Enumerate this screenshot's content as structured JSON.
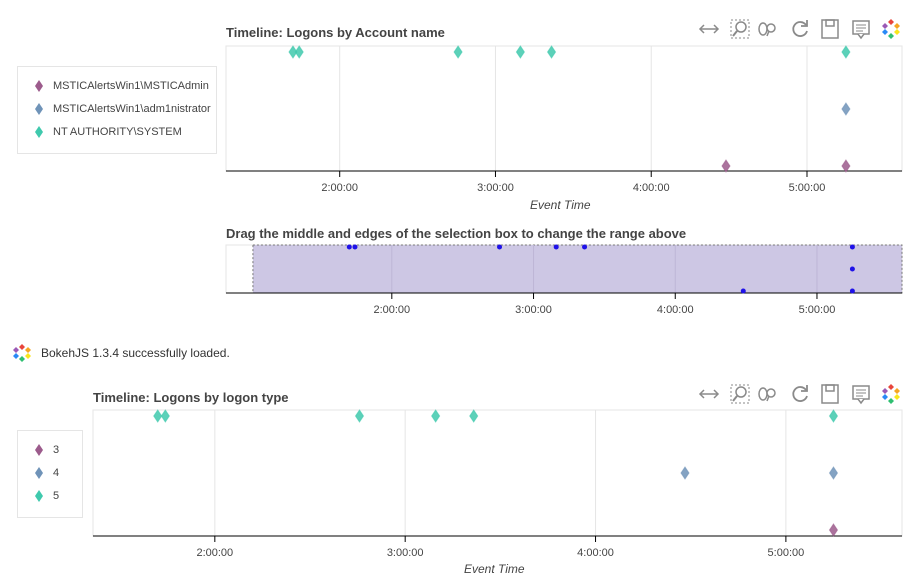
{
  "colors": {
    "series_3": "#9c5b8c",
    "series_4": "#6f93b8",
    "series_5": "#3fc9ad",
    "range_dot": "#1f12e8",
    "selection_fill": "#cdc7e4",
    "toolbar_active": "#26aae1"
  },
  "toolbar": {
    "icons": [
      "pan-icon",
      "box-zoom-icon",
      "wheel-zoom-icon",
      "reset-icon",
      "save-icon",
      "hover-icon",
      "bokeh-logo-icon"
    ]
  },
  "loaded_message": "BokehJS 1.3.4 successfully loaded.",
  "chart_data": [
    {
      "type": "scatter",
      "title": "Timeline: Logons by Account name",
      "xlabel": "Event Time",
      "ylabel": "",
      "x_ticks": [
        "2:00:00",
        "3:00:00",
        "4:00:00",
        "5:00:00"
      ],
      "xlim": [
        1.27,
        5.61
      ],
      "grid": true,
      "legend_placement": "left-outside",
      "marker": "diamond",
      "series": [
        {
          "name": "MSTICAlertsWin1\\MSTICAdmin",
          "color_key": "series_3",
          "row": 2,
          "x": [
            4.48,
            5.25
          ]
        },
        {
          "name": "MSTICAlertsWin1\\adm1nistrator",
          "color_key": "series_4",
          "row": 1,
          "x": [
            5.25
          ]
        },
        {
          "name": "NT AUTHORITY\\SYSTEM",
          "color_key": "series_5",
          "row": 0,
          "x": [
            1.7,
            1.74,
            2.76,
            3.16,
            3.36,
            5.25
          ]
        }
      ]
    },
    {
      "type": "scatter",
      "title": "Drag the middle and edges of the selection box to change the range above",
      "xlabel": "",
      "x_ticks": [
        "2:00:00",
        "3:00:00",
        "4:00:00",
        "5:00:00"
      ],
      "xlim": [
        0.83,
        5.6
      ],
      "selection": [
        1.02,
        5.6
      ],
      "marker": "circle",
      "points": [
        {
          "x": 1.7,
          "row": 0
        },
        {
          "x": 1.74,
          "row": 0
        },
        {
          "x": 2.76,
          "row": 0
        },
        {
          "x": 3.16,
          "row": 0
        },
        {
          "x": 3.36,
          "row": 0
        },
        {
          "x": 5.25,
          "row": 0
        },
        {
          "x": 5.25,
          "row": 1
        },
        {
          "x": 4.48,
          "row": 2
        },
        {
          "x": 5.25,
          "row": 2
        }
      ]
    },
    {
      "type": "scatter",
      "title": "Timeline: Logons by logon type",
      "xlabel": "Event Time",
      "ylabel": "",
      "x_ticks": [
        "2:00:00",
        "3:00:00",
        "4:00:00",
        "5:00:00"
      ],
      "xlim": [
        1.36,
        5.61
      ],
      "grid": true,
      "legend_placement": "left-outside",
      "marker": "diamond",
      "series": [
        {
          "name": "3",
          "color_key": "series_3",
          "row": 2,
          "x": [
            5.25
          ]
        },
        {
          "name": "4",
          "color_key": "series_4",
          "row": 1,
          "x": [
            4.47,
            5.25
          ]
        },
        {
          "name": "5",
          "color_key": "series_5",
          "row": 0,
          "x": [
            1.7,
            1.74,
            2.76,
            3.16,
            3.36,
            5.25
          ]
        }
      ]
    }
  ]
}
